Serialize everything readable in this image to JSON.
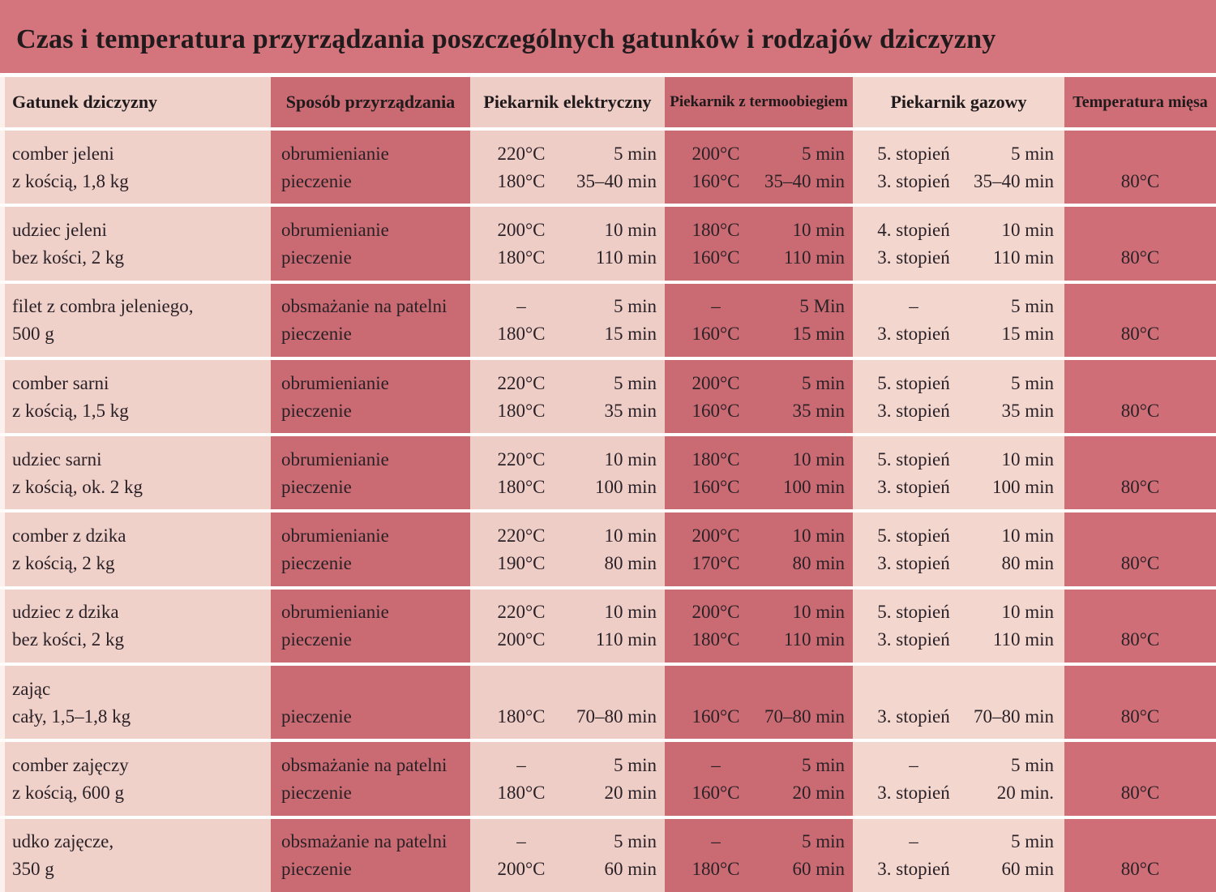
{
  "title": "Czas i temperatura przyrządzania poszczególnych gatunków i rodzajów dziczyzny",
  "columns": {
    "species": "Gatunek dziczyzny",
    "method": "Sposób przyrządzania",
    "electric": "Piekarnik elektryczny",
    "convection": "Piekarnik z termoobiegiem",
    "gas": "Piekarnik gazowy",
    "meat_temp": "Temperatura mięsa"
  },
  "colors": {
    "title_band": "#d4757d",
    "dark_column": "#ca6a72",
    "dark_column_last": "#cf6e77",
    "light_column_1": "#f0d1ca",
    "light_column_2": "#eecdc6",
    "light_column_3": "#f3d7cf",
    "separator": "#ffffff",
    "text": "#2a2127"
  },
  "rows": [
    {
      "species": [
        "comber jeleni",
        "z kością, 1,8 kg"
      ],
      "method": [
        "obrumienianie",
        "pieczenie"
      ],
      "electric": [
        {
          "temp": "220°C",
          "time": "5 min"
        },
        {
          "temp": "180°C",
          "time": "35–40 min"
        }
      ],
      "convection": [
        {
          "temp": "200°C",
          "time": "5 min"
        },
        {
          "temp": "160°C",
          "time": "35–40 min"
        }
      ],
      "gas": [
        {
          "temp": "5. stopień",
          "time": "5 min"
        },
        {
          "temp": "3. stopień",
          "time": "35–40 min"
        }
      ],
      "meat_temp": "80°C"
    },
    {
      "species": [
        "udziec jeleni",
        "bez kości, 2 kg"
      ],
      "method": [
        "obrumienianie",
        "pieczenie"
      ],
      "electric": [
        {
          "temp": "200°C",
          "time": "10 min"
        },
        {
          "temp": "180°C",
          "time": "110 min"
        }
      ],
      "convection": [
        {
          "temp": "180°C",
          "time": "10 min"
        },
        {
          "temp": "160°C",
          "time": "110 min"
        }
      ],
      "gas": [
        {
          "temp": "4. stopień",
          "time": "10 min"
        },
        {
          "temp": "3. stopień",
          "time": "110 min"
        }
      ],
      "meat_temp": "80°C"
    },
    {
      "species": [
        "filet z combra jeleniego,",
        "500 g"
      ],
      "method": [
        "obsmażanie na patelni",
        "pieczenie"
      ],
      "electric": [
        {
          "temp": "–",
          "time": "5 min"
        },
        {
          "temp": "180°C",
          "time": "15 min"
        }
      ],
      "convection": [
        {
          "temp": "–",
          "time": "5 Min"
        },
        {
          "temp": "160°C",
          "time": "15 min"
        }
      ],
      "gas": [
        {
          "temp": "–",
          "time": "5 min"
        },
        {
          "temp": "3. stopień",
          "time": "15 min"
        }
      ],
      "meat_temp": "80°C"
    },
    {
      "species": [
        "comber sarni",
        "z kością, 1,5 kg"
      ],
      "method": [
        "obrumienianie",
        "pieczenie"
      ],
      "electric": [
        {
          "temp": "220°C",
          "time": "5 min"
        },
        {
          "temp": "180°C",
          "time": "35 min"
        }
      ],
      "convection": [
        {
          "temp": "200°C",
          "time": "5 min"
        },
        {
          "temp": "160°C",
          "time": "35 min"
        }
      ],
      "gas": [
        {
          "temp": "5. stopień",
          "time": "5 min"
        },
        {
          "temp": "3. stopień",
          "time": "35 min"
        }
      ],
      "meat_temp": "80°C"
    },
    {
      "species": [
        "udziec sarni",
        "z kością, ok. 2 kg"
      ],
      "method": [
        "obrumienianie",
        "pieczenie"
      ],
      "electric": [
        {
          "temp": "220°C",
          "time": "10 min"
        },
        {
          "temp": "180°C",
          "time": "100 min"
        }
      ],
      "convection": [
        {
          "temp": "180°C",
          "time": "10 min"
        },
        {
          "temp": "160°C",
          "time": "100 min"
        }
      ],
      "gas": [
        {
          "temp": "5. stopień",
          "time": "10 min"
        },
        {
          "temp": "3. stopień",
          "time": "100 min"
        }
      ],
      "meat_temp": "80°C"
    },
    {
      "species": [
        "comber z dzika",
        "z kością, 2 kg"
      ],
      "method": [
        "obrumienianie",
        "pieczenie"
      ],
      "electric": [
        {
          "temp": "220°C",
          "time": "10 min"
        },
        {
          "temp": "190°C",
          "time": "80 min"
        }
      ],
      "convection": [
        {
          "temp": "200°C",
          "time": "10 min"
        },
        {
          "temp": "170°C",
          "time": "80 min"
        }
      ],
      "gas": [
        {
          "temp": "5. stopień",
          "time": "10 min"
        },
        {
          "temp": "3. stopień",
          "time": "80 min"
        }
      ],
      "meat_temp": "80°C"
    },
    {
      "species": [
        "udziec z dzika",
        "bez kości, 2 kg"
      ],
      "method": [
        "obrumienianie",
        "pieczenie"
      ],
      "electric": [
        {
          "temp": "220°C",
          "time": "10 min"
        },
        {
          "temp": "200°C",
          "time": "110 min"
        }
      ],
      "convection": [
        {
          "temp": "200°C",
          "time": "10 min"
        },
        {
          "temp": "180°C",
          "time": "110 min"
        }
      ],
      "gas": [
        {
          "temp": "5. stopień",
          "time": "10 min"
        },
        {
          "temp": "3. stopień",
          "time": "110 min"
        }
      ],
      "meat_temp": "80°C"
    },
    {
      "species": [
        "zając",
        "cały, 1,5–1,8 kg"
      ],
      "method": [
        "",
        "pieczenie"
      ],
      "electric": [
        {
          "temp": "",
          "time": ""
        },
        {
          "temp": "180°C",
          "time": "70–80 min"
        }
      ],
      "convection": [
        {
          "temp": "",
          "time": ""
        },
        {
          "temp": "160°C",
          "time": "70–80 min"
        }
      ],
      "gas": [
        {
          "temp": "",
          "time": ""
        },
        {
          "temp": "3. stopień",
          "time": "70–80 min"
        }
      ],
      "meat_temp": "80°C"
    },
    {
      "species": [
        "comber zajęczy",
        "z kością, 600 g"
      ],
      "method": [
        "obsmażanie na patelni",
        "pieczenie"
      ],
      "electric": [
        {
          "temp": "–",
          "time": "5 min"
        },
        {
          "temp": "180°C",
          "time": "20 min"
        }
      ],
      "convection": [
        {
          "temp": "–",
          "time": "5 min"
        },
        {
          "temp": "160°C",
          "time": "20 min"
        }
      ],
      "gas": [
        {
          "temp": "–",
          "time": "5 min"
        },
        {
          "temp": "3. stopień",
          "time": "20 min."
        }
      ],
      "meat_temp": "80°C"
    },
    {
      "species": [
        "udko zajęcze,",
        "350 g"
      ],
      "method": [
        "obsmażanie na patelni",
        "pieczenie"
      ],
      "electric": [
        {
          "temp": "–",
          "time": "5 min"
        },
        {
          "temp": "200°C",
          "time": "60 min"
        }
      ],
      "convection": [
        {
          "temp": "–",
          "time": "5 min"
        },
        {
          "temp": "180°C",
          "time": "60 min"
        }
      ],
      "gas": [
        {
          "temp": "–",
          "time": "5 min"
        },
        {
          "temp": "3. stopień",
          "time": "60 min"
        }
      ],
      "meat_temp": "80°C"
    }
  ]
}
